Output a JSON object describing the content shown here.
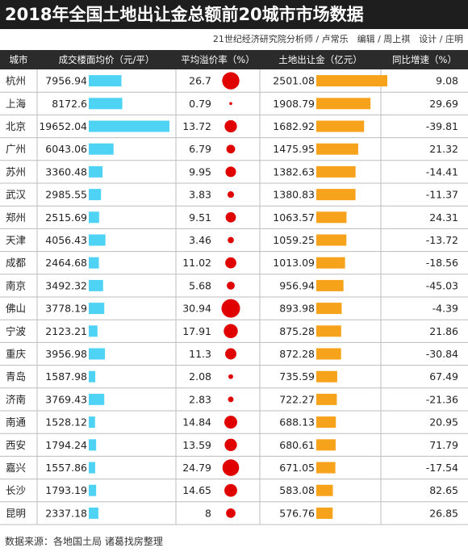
{
  "title": "2018年全国土地出让金总额前20城市市场数据",
  "credits": "21世纪经济研究院分析师 / 卢常乐　编辑 / 周上祺　设计 / 庄明",
  "source": "数据来源：各地国土局 诸葛找房整理",
  "colors": {
    "header_bg": "#2b2b2b",
    "price_bar": "#4fd3f5",
    "premium_dot": "#e00000",
    "land_bar": "#f7a21b",
    "grid": "#bdbdbd"
  },
  "headers": {
    "city": "城市",
    "price": "成交楼面均价（元/平）",
    "premium": "平均溢价率（%）",
    "land": "土地出让金（亿元）",
    "yoy": "同比增速（%）"
  },
  "chart_data": {
    "type": "table",
    "columns": [
      "城市",
      "成交楼面均价（元/平）",
      "平均溢价率（%）",
      "土地出让金（亿元）",
      "同比增速（%）"
    ],
    "rows": [
      {
        "city": "杭州",
        "price": "7956.94",
        "premium": "26.7",
        "land": "2501.08",
        "yoy": "9.08"
      },
      {
        "city": "上海",
        "price": "8172.6",
        "premium": "0.79",
        "land": "1908.79",
        "yoy": "29.69"
      },
      {
        "city": "北京",
        "price": "19652.04",
        "premium": "13.72",
        "land": "1682.92",
        "yoy": "-39.81"
      },
      {
        "city": "广州",
        "price": "6043.06",
        "premium": "6.79",
        "land": "1475.95",
        "yoy": "21.32"
      },
      {
        "city": "苏州",
        "price": "3360.48",
        "premium": "9.95",
        "land": "1382.63",
        "yoy": "-14.41"
      },
      {
        "city": "武汉",
        "price": "2985.55",
        "premium": "3.83",
        "land": "1380.83",
        "yoy": "-11.37"
      },
      {
        "city": "郑州",
        "price": "2515.69",
        "premium": "9.51",
        "land": "1063.57",
        "yoy": "24.31"
      },
      {
        "city": "天津",
        "price": "4056.43",
        "premium": "3.46",
        "land": "1059.25",
        "yoy": "-13.72"
      },
      {
        "city": "成都",
        "price": "2464.68",
        "premium": "11.02",
        "land": "1013.09",
        "yoy": "-18.56"
      },
      {
        "city": "南京",
        "price": "3492.32",
        "premium": "5.68",
        "land": "956.94",
        "yoy": "-45.03"
      },
      {
        "city": "佛山",
        "price": "3778.19",
        "premium": "30.94",
        "land": "893.98",
        "yoy": "-4.39"
      },
      {
        "city": "宁波",
        "price": "2123.21",
        "premium": "17.91",
        "land": "875.28",
        "yoy": "21.86"
      },
      {
        "city": "重庆",
        "price": "3956.98",
        "premium": "11.3",
        "land": "872.28",
        "yoy": "-30.84"
      },
      {
        "city": "青岛",
        "price": "1587.98",
        "premium": "2.08",
        "land": "735.59",
        "yoy": "67.49"
      },
      {
        "city": "济南",
        "price": "3769.43",
        "premium": "2.83",
        "land": "722.27",
        "yoy": "-21.36"
      },
      {
        "city": "南通",
        "price": "1528.12",
        "premium": "14.84",
        "land": "688.13",
        "yoy": "20.95"
      },
      {
        "city": "西安",
        "price": "1794.24",
        "premium": "13.59",
        "land": "680.61",
        "yoy": "71.79"
      },
      {
        "city": "嘉兴",
        "price": "1557.86",
        "premium": "24.79",
        "land": "671.05",
        "yoy": "-17.54"
      },
      {
        "city": "长沙",
        "price": "1793.19",
        "premium": "14.65",
        "land": "583.08",
        "yoy": "82.65"
      },
      {
        "city": "昆明",
        "price": "2337.18",
        "premium": "8",
        "land": "576.76",
        "yoy": "26.85"
      }
    ]
  }
}
